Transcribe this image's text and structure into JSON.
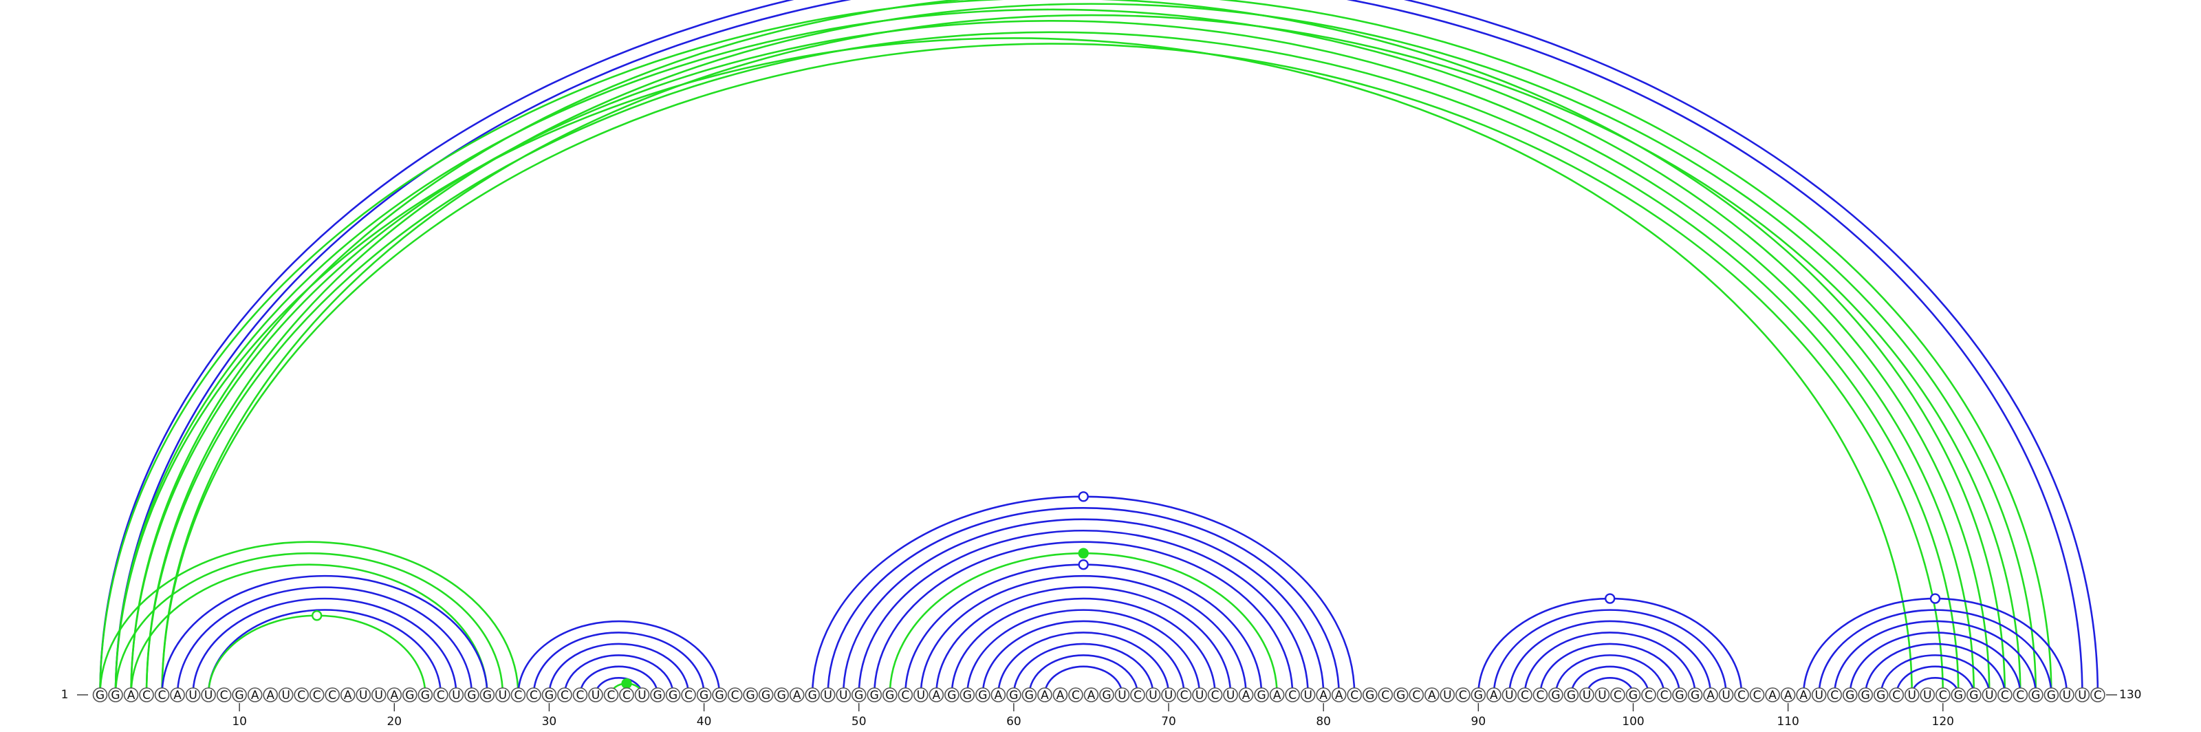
{
  "sequence": "GGACCAUUCGAAUCCCAUUAGGCUGGUCCGCCUCCUGGCGGCGGGAGUUGGGCUAGGGAGGAACAGUCUUCUCUAGACUAACGCGCAUCGAUCCGGUUCGCCGGAUCCAAAUCGGGCUUCGGUCCGGUUC",
  "start_label": "1",
  "end_label": "130",
  "ticks": [
    10,
    20,
    30,
    40,
    50,
    60,
    70,
    80,
    90,
    100,
    110,
    120
  ],
  "colors": {
    "blue": "#1f1fe0",
    "green": "#22dd22"
  },
  "arc_groups": [
    {
      "color": "blue",
      "pairs": [
        [
          1,
          130
        ],
        [
          2,
          129
        ]
      ],
      "marker": {
        "x": 65.5,
        "filled": false
      }
    },
    {
      "color": "green",
      "pairs": [
        [
          3,
          127
        ],
        [
          4,
          126
        ],
        [
          5,
          125
        ]
      ]
    },
    {
      "color": "green",
      "pairs": [
        [
          1,
          124
        ],
        [
          2,
          123
        ],
        [
          3,
          122
        ],
        [
          4,
          121
        ],
        [
          5,
          120
        ]
      ]
    },
    {
      "color": "green",
      "pairs": [
        [
          2,
          118
        ]
      ]
    },
    {
      "color": "green",
      "pairs": [
        [
          1,
          28
        ],
        [
          2,
          27
        ],
        [
          3,
          26
        ]
      ]
    },
    {
      "color": "blue",
      "pairs": [
        [
          5,
          26
        ],
        [
          6,
          25
        ],
        [
          7,
          24
        ],
        [
          8,
          23
        ]
      ]
    },
    {
      "color": "green",
      "pairs": [
        [
          8,
          22
        ]
      ],
      "marker": {
        "x": 15,
        "filled": false
      }
    },
    {
      "color": "blue",
      "pairs": [
        [
          28,
          41
        ],
        [
          29,
          40
        ],
        [
          30,
          39
        ],
        [
          31,
          38
        ],
        [
          32,
          37
        ],
        [
          33,
          36
        ]
      ]
    },
    {
      "color": "green",
      "pairs": [
        [
          34,
          36
        ]
      ],
      "marker": {
        "x": 35,
        "filled": true
      }
    },
    {
      "color": "blue",
      "pairs": [
        [
          47,
          82
        ],
        [
          48,
          81
        ],
        [
          49,
          80
        ],
        [
          50,
          79
        ],
        [
          51,
          78
        ]
      ],
      "marker": {
        "x": 64.5,
        "filled": false
      }
    },
    {
      "color": "green",
      "pairs": [
        [
          52,
          77
        ]
      ],
      "marker": {
        "x": 64.5,
        "filled": true
      }
    },
    {
      "color": "blue",
      "pairs": [
        [
          53,
          76
        ],
        [
          54,
          75
        ],
        [
          55,
          74
        ],
        [
          56,
          73
        ],
        [
          57,
          72
        ],
        [
          58,
          71
        ],
        [
          59,
          70
        ],
        [
          60,
          69
        ],
        [
          61,
          68
        ],
        [
          62,
          67
        ]
      ],
      "marker": {
        "x": 64.5,
        "filled": false
      }
    },
    {
      "color": "blue",
      "pairs": [
        [
          90,
          107
        ],
        [
          91,
          106
        ],
        [
          92,
          105
        ],
        [
          93,
          104
        ],
        [
          94,
          103
        ],
        [
          95,
          102
        ],
        [
          96,
          101
        ],
        [
          97,
          100
        ]
      ],
      "marker": {
        "x": 98.5,
        "filled": false
      }
    },
    {
      "color": "blue",
      "pairs": [
        [
          111,
          128
        ],
        [
          112,
          127
        ],
        [
          113,
          126
        ],
        [
          114,
          125
        ],
        [
          115,
          124
        ],
        [
          116,
          123
        ],
        [
          117,
          122
        ],
        [
          118,
          121
        ]
      ],
      "marker": {
        "x": 119.5,
        "filled": false
      }
    }
  ]
}
